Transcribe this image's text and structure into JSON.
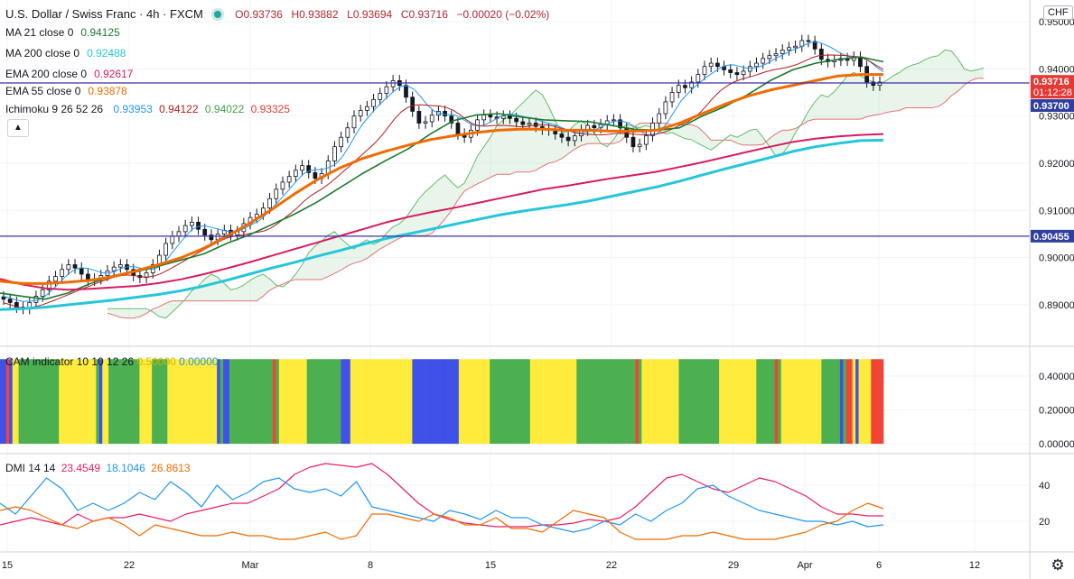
{
  "header": {
    "symbol": "U.S. Dollar / Swiss Franc · 4h · FXCM",
    "o": "O0.93736",
    "h": "H0.93882",
    "l": "L0.93694",
    "c": "C0.93716",
    "change": "−0.00020 (−0.02%)"
  },
  "currency_badge": "CHF",
  "legends": [
    {
      "label": "MA 21 close 0",
      "value": "0.94125",
      "color": "#1b7a2e"
    },
    {
      "label": "MA 200 close 0",
      "value": "0.92488",
      "color": "#26c6da"
    },
    {
      "label": "EMA 200 close 0",
      "value": "0.92617",
      "color": "#d81b60"
    },
    {
      "label": "EMA 55 close 0",
      "value": "0.93878",
      "color": "#ef6c00"
    }
  ],
  "ichimoku": {
    "label": "Ichimoku 9 26 52 26",
    "values": [
      "0.93953",
      "0.94122",
      "0.94022",
      "0.93325"
    ],
    "colors": [
      "#2196f3",
      "#b71c1c",
      "#43a047",
      "#e53935"
    ]
  },
  "cam": {
    "label": "CAM indicator 10 10 12 26",
    "values": [
      "0.50000",
      "0.00000"
    ],
    "colors": [
      "#ffeb3b",
      "#2196f3"
    ]
  },
  "dmi": {
    "label": "DMI 14 14",
    "values": [
      "23.4549",
      "18.1046",
      "26.8613"
    ],
    "colors": [
      "#e91e63",
      "#2196f3",
      "#ef6c00"
    ]
  },
  "chart_data": [
    {
      "type": "line",
      "title": "U.S. Dollar / Swiss Franc · 4h · FXCM",
      "y_ticks": [
        "0.95000",
        "0.94000",
        "0.93000",
        "0.92000",
        "0.91000",
        "0.90000",
        "0.89000"
      ],
      "ylim": [
        0.8835,
        0.953
      ],
      "x_ticks": [
        "15",
        "22",
        "Mar",
        "8",
        "15",
        "22",
        "29",
        "Apr",
        "6",
        "12"
      ],
      "price_labels": [
        {
          "text": "0.93716",
          "sub": "01:12:28",
          "value": 0.93716,
          "color": "#e53935"
        },
        {
          "text": "0.93700",
          "value": 0.937,
          "color": "#303f9f"
        },
        {
          "text": "0.90455",
          "value": 0.90455,
          "color": "#303f9f"
        }
      ],
      "horizontal_lines": [
        0.937,
        0.90455
      ],
      "close_series": [
        0.8912,
        0.8905,
        0.8895,
        0.8892,
        0.8905,
        0.8918,
        0.8932,
        0.895,
        0.896,
        0.8975,
        0.8985,
        0.8978,
        0.8965,
        0.8952,
        0.8955,
        0.8962,
        0.8972,
        0.898,
        0.8985,
        0.8975,
        0.8962,
        0.8958,
        0.8968,
        0.8985,
        0.9005,
        0.903,
        0.9045,
        0.9055,
        0.9068,
        0.9075,
        0.906,
        0.9048,
        0.9038,
        0.905,
        0.9058,
        0.9048,
        0.9055,
        0.9072,
        0.9085,
        0.9092,
        0.9105,
        0.9125,
        0.9145,
        0.916,
        0.9172,
        0.9185,
        0.9195,
        0.918,
        0.9168,
        0.9178,
        0.9205,
        0.9235,
        0.9255,
        0.9275,
        0.93,
        0.9312,
        0.932,
        0.9335,
        0.9348,
        0.9362,
        0.9375,
        0.9365,
        0.934,
        0.931,
        0.9285,
        0.9288,
        0.9302,
        0.931,
        0.93,
        0.9285,
        0.9262,
        0.9255,
        0.927,
        0.9292,
        0.9302,
        0.9298,
        0.9295,
        0.93,
        0.9295,
        0.9288,
        0.9282,
        0.9285,
        0.9278,
        0.9272,
        0.927,
        0.9262,
        0.9255,
        0.9248,
        0.9258,
        0.927,
        0.928,
        0.9275,
        0.9282,
        0.929,
        0.9292,
        0.9275,
        0.9255,
        0.9235,
        0.924,
        0.9258,
        0.9285,
        0.9305,
        0.933,
        0.935,
        0.9365,
        0.936,
        0.9372,
        0.9388,
        0.9405,
        0.9412,
        0.9405,
        0.9398,
        0.9392,
        0.9388,
        0.9395,
        0.9405,
        0.9412,
        0.9422,
        0.9428,
        0.9432,
        0.944,
        0.9445,
        0.9448,
        0.946,
        0.9458,
        0.9442,
        0.942,
        0.9415,
        0.9418,
        0.9422,
        0.9418,
        0.9425,
        0.9405,
        0.9372,
        0.9365,
        0.9372
      ],
      "series": [
        {
          "name": "MA 21 close 0",
          "color": "#1b7a2e",
          "values": [
            0.8925,
            0.8918,
            0.8912,
            0.8925,
            0.8945,
            0.8962,
            0.897,
            0.8982,
            0.8995,
            0.9008,
            0.903,
            0.9048,
            0.907,
            0.9092,
            0.9118,
            0.9148,
            0.9178,
            0.9205,
            0.923,
            0.9262,
            0.929,
            0.9302,
            0.9305,
            0.9298,
            0.9292,
            0.929,
            0.9288,
            0.928,
            0.9272,
            0.927,
            0.9275,
            0.93,
            0.932,
            0.9345,
            0.9375,
            0.9398,
            0.9412,
            0.942,
            0.9425,
            0.9415
          ]
        },
        {
          "name": "MA 200 close 0",
          "color": "#26c6da",
          "values": [
            0.889,
            0.8892,
            0.8895,
            0.89,
            0.8905,
            0.891,
            0.8916,
            0.8922,
            0.893,
            0.894,
            0.8952,
            0.8965,
            0.8978,
            0.899,
            0.9003,
            0.9015,
            0.9028,
            0.904,
            0.905,
            0.906,
            0.907,
            0.908,
            0.909,
            0.9098,
            0.9105,
            0.9112,
            0.912,
            0.913,
            0.914,
            0.915,
            0.9162,
            0.9175,
            0.9188,
            0.92,
            0.9212,
            0.9225,
            0.9235,
            0.9242,
            0.9248,
            0.9249
          ]
        },
        {
          "name": "EMA 200 close 0",
          "color": "#d81b60",
          "values": [
            0.8955,
            0.8943,
            0.8935,
            0.8932,
            0.8934,
            0.8937,
            0.894,
            0.8946,
            0.8954,
            0.8965,
            0.8977,
            0.899,
            0.9004,
            0.9018,
            0.9032,
            0.9046,
            0.906,
            0.9074,
            0.9086,
            0.9096,
            0.9105,
            0.9115,
            0.9125,
            0.9135,
            0.9145,
            0.9152,
            0.916,
            0.9168,
            0.9175,
            0.9182,
            0.9192,
            0.9202,
            0.9213,
            0.9224,
            0.9235,
            0.9245,
            0.9252,
            0.9257,
            0.926,
            0.9262
          ]
        },
        {
          "name": "EMA 55 close 0",
          "color": "#ef6c00",
          "values": [
            0.895,
            0.8945,
            0.8945,
            0.8948,
            0.8952,
            0.896,
            0.8972,
            0.8985,
            0.9,
            0.902,
            0.9045,
            0.9072,
            0.9102,
            0.9135,
            0.9165,
            0.919,
            0.921,
            0.9225,
            0.9238,
            0.925,
            0.9258,
            0.9265,
            0.927,
            0.9272,
            0.9272,
            0.927,
            0.927,
            0.9268,
            0.9268,
            0.927,
            0.9285,
            0.9305,
            0.9325,
            0.9342,
            0.9355,
            0.9365,
            0.9375,
            0.9385,
            0.9388,
            0.9388
          ]
        }
      ]
    },
    {
      "type": "bar",
      "title": "CAM indicator 10 10 12 26",
      "y_ticks": [
        "0.40000",
        "0.20000",
        "0.00000"
      ],
      "ylim": [
        0,
        0.5
      ],
      "colors_key": {
        "G": "#4caf50",
        "Y": "#ffeb3b",
        "B": "#3f51e8",
        "R": "#f44336"
      },
      "bar_colors": "BBRBYYGGGGGGGGGGGGGYYYYYYYYYYYYGBYYGGGGGGGGGGYYYYGGGGGYYYYYYYYYYYYYYYYBGBBGGGGGGGGGGGGGGRGYYYYYYYYYGGGGGGGGGGGBBBYYYYYYYYYYYYYYYYYYYYBBBBBBBBBBBBBBBYYYYYYYYYYGGGGGGGGGGGGGYYYYYYYYYYYYYYYGGGGGGGGGGGGGGGGGGGRGYYYYYYYYYYYYGGGGGGGGGGGGGYYYYYYYYYYYYGGGGGGRGYYYYYYYYYYYYYGGGGGGBGRRYBYYYYRRRR"
    },
    {
      "type": "line",
      "title": "DMI 14 14",
      "y_ticks": [
        "40",
        "20"
      ],
      "ylim": [
        5,
        55
      ],
      "series": [
        {
          "name": "+DI",
          "color": "#e91e63",
          "values": [
            18,
            20,
            22,
            20,
            18,
            24,
            20,
            22,
            22,
            24,
            22,
            20,
            24,
            26,
            28,
            30,
            30,
            34,
            38,
            46,
            50,
            52,
            51,
            50,
            52,
            46,
            38,
            30,
            24,
            21,
            19,
            18,
            17,
            17,
            17,
            18,
            18,
            19,
            21,
            20,
            22,
            28,
            36,
            44,
            46,
            42,
            38,
            36,
            40,
            44,
            42,
            38,
            34,
            28,
            24,
            24,
            23,
            23
          ]
        },
        {
          "name": "-DI",
          "color": "#2196f3",
          "values": [
            30,
            24,
            34,
            44,
            38,
            26,
            30,
            26,
            30,
            36,
            32,
            42,
            36,
            28,
            40,
            32,
            36,
            42,
            44,
            38,
            36,
            38,
            34,
            42,
            28,
            26,
            24,
            22,
            20,
            26,
            24,
            21,
            26,
            22,
            22,
            18,
            16,
            14,
            16,
            20,
            18,
            24,
            20,
            26,
            30,
            38,
            40,
            34,
            30,
            26,
            24,
            22,
            20,
            20,
            18,
            20,
            17,
            18
          ]
        },
        {
          "name": "ADX",
          "color": "#ef6c00",
          "values": [
            26,
            28,
            26,
            22,
            18,
            16,
            20,
            22,
            18,
            12,
            18,
            16,
            14,
            12,
            12,
            14,
            12,
            12,
            10,
            10,
            12,
            14,
            10,
            12,
            24,
            24,
            22,
            20,
            24,
            22,
            18,
            18,
            22,
            16,
            16,
            14,
            20,
            26,
            24,
            22,
            14,
            10,
            10,
            10,
            12,
            12,
            14,
            12,
            10,
            10,
            10,
            12,
            14,
            18,
            20,
            26,
            30,
            27
          ]
        }
      ]
    }
  ]
}
